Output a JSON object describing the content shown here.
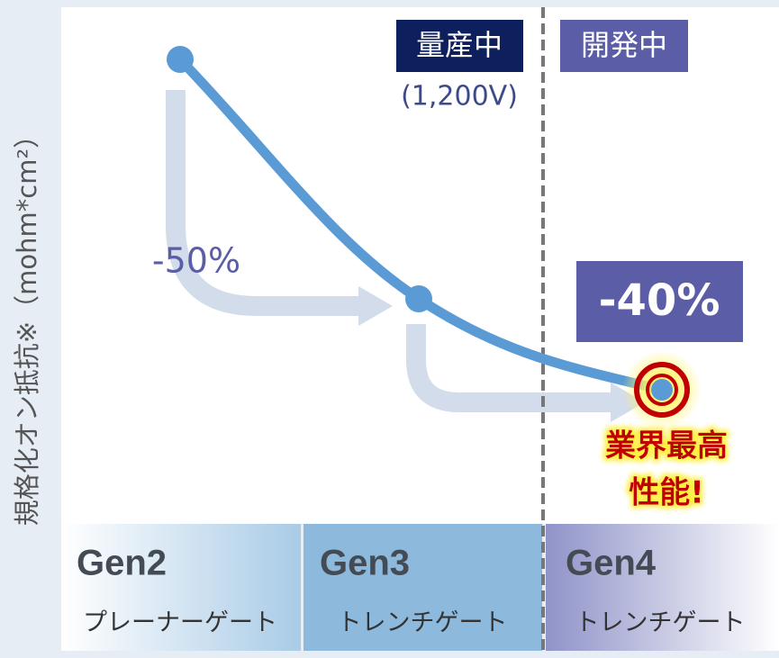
{
  "y_axis_label": "規格化オン抵抗※（mohm*cm²）",
  "badges": {
    "production": "量産中",
    "production_note": "(1,200V)",
    "development": "開発中"
  },
  "annotations": {
    "gen2_to_gen3": "-50%",
    "gen3_to_gen4": "-40%",
    "highlight": [
      "業界最高",
      "性能!"
    ]
  },
  "generations": [
    {
      "name": "Gen2",
      "gate": "プレーナーゲート"
    },
    {
      "name": "Gen3",
      "gate": "トレンチゲート"
    },
    {
      "name": "Gen4",
      "gate": "トレンチゲート"
    }
  ]
}
